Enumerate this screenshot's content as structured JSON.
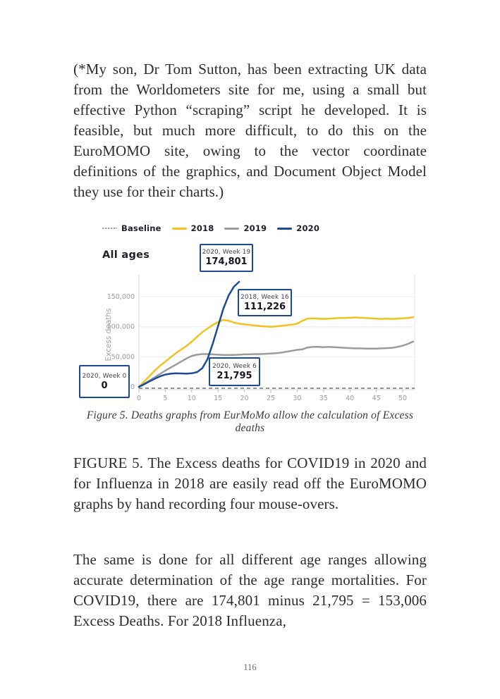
{
  "page": {
    "paragraph1": "(*My son, Dr Tom Sutton, has been extracting UK data from the Worldometers site for me, using a small but effective Python “scraping” script he developed. It is feasible, but much more difficult, to do this on the EuroMOMO site, owing to the vector coordinate definitions of the graphics, and Document Object Model they use for their charts.)",
    "caption": "Figure 5. Deaths graphs from EurMoMo allow the calculation of Excess deaths",
    "paragraph2": "FIGURE 5. The Excess deaths for COVID19 in 2020 and for Influenza in 2018 are easily read off the EuroMOMO graphs by hand recording four mouse-overs.",
    "paragraph3": "The same is done for all different age ranges allowing accurate determination of the age range mortalities. For COVID19, there are 174,801 minus 21,795 = 153,006 Excess Deaths. For 2018 Influenza,",
    "page_number": "116"
  },
  "chart_data": {
    "type": "line",
    "title": "All ages",
    "ylabel": "Excess deaths",
    "xlabel": "",
    "x_unit": "week",
    "xlim": [
      0,
      52
    ],
    "ylim": [
      0,
      180000
    ],
    "grid": "horizontal",
    "legend_position": "top",
    "x_ticks": [
      0,
      5,
      10,
      15,
      20,
      25,
      30,
      35,
      40,
      45,
      50
    ],
    "y_ticks": [
      {
        "value": 0,
        "label": "0"
      },
      {
        "value": 50000,
        "label": "50,000"
      },
      {
        "value": 100000,
        "label": "100,000"
      },
      {
        "value": 150000,
        "label": "150,000"
      }
    ],
    "legend": [
      {
        "label": "Baseline",
        "color": "#9a9a9a",
        "style": "dotted"
      },
      {
        "label": "2018",
        "color": "#f2c21f",
        "style": "solid"
      },
      {
        "label": "2019",
        "color": "#9b9b9b",
        "style": "solid"
      },
      {
        "label": "2020",
        "color": "#1b4a9b",
        "style": "solid"
      }
    ],
    "baseline": {
      "label": "Baseline",
      "value": 0,
      "style": "dashed",
      "color": "#6f6f6f"
    },
    "series": [
      {
        "name": "2018",
        "color": "#f2c21f",
        "x": [
          0,
          1,
          2,
          3,
          4,
          5,
          6,
          7,
          8,
          9,
          10,
          11,
          12,
          13,
          14,
          15,
          16,
          17,
          18,
          19,
          20,
          21,
          22,
          23,
          24,
          25,
          26,
          27,
          28,
          29,
          30,
          31,
          32,
          33,
          34,
          35,
          36,
          37,
          38,
          39,
          40,
          41,
          42,
          43,
          44,
          45,
          46,
          47,
          48,
          49,
          50,
          51,
          52
        ],
        "values": [
          0,
          9000,
          18000,
          27000,
          35000,
          42000,
          49000,
          56000,
          62000,
          68000,
          75000,
          83000,
          91000,
          97000,
          103000,
          108000,
          111226,
          110000,
          107000,
          105000,
          104000,
          103000,
          102000,
          101000,
          100500,
          100000,
          100500,
          101500,
          102500,
          103500,
          105000,
          110000,
          113500,
          114000,
          113500,
          113000,
          113500,
          114000,
          114500,
          114500,
          115000,
          115500,
          115000,
          114500,
          114000,
          113500,
          113000,
          113500,
          113000,
          113500,
          114000,
          114500,
          116000
        ]
      },
      {
        "name": "2019",
        "color": "#9b9b9b",
        "x": [
          0,
          1,
          2,
          3,
          4,
          5,
          6,
          7,
          8,
          9,
          10,
          11,
          12,
          13,
          14,
          15,
          16,
          17,
          18,
          19,
          20,
          21,
          22,
          23,
          24,
          25,
          26,
          27,
          28,
          29,
          30,
          31,
          32,
          33,
          34,
          35,
          36,
          37,
          38,
          39,
          40,
          41,
          42,
          43,
          44,
          45,
          46,
          47,
          48,
          49,
          50,
          51,
          52
        ],
        "values": [
          0,
          5000,
          10500,
          16000,
          21500,
          27000,
          32000,
          37000,
          42000,
          47000,
          51500,
          53500,
          54500,
          54500,
          54000,
          53500,
          53000,
          53000,
          53000,
          53500,
          54000,
          54000,
          54500,
          54500,
          55000,
          55500,
          56000,
          57000,
          58500,
          60000,
          61500,
          62500,
          65500,
          66500,
          66500,
          66000,
          66500,
          66000,
          65500,
          65000,
          64500,
          64000,
          64000,
          63500,
          63500,
          63500,
          64000,
          64500,
          65000,
          66500,
          68500,
          71500,
          75500
        ]
      },
      {
        "name": "2020",
        "color": "#1b4a9b",
        "x": [
          0,
          1,
          2,
          3,
          4,
          5,
          6,
          7,
          8,
          9,
          10,
          11,
          12,
          13,
          14,
          15,
          16,
          17,
          18,
          19
        ],
        "values": [
          0,
          4500,
          9000,
          13500,
          17500,
          20500,
          21795,
          22500,
          22300,
          22000,
          22500,
          24500,
          31000,
          46000,
          72000,
          101000,
          130000,
          152000,
          166500,
          174801
        ]
      }
    ],
    "tooltips": [
      {
        "series": "2020",
        "week": 0,
        "label": "2020, Week 0",
        "value": "0"
      },
      {
        "series": "2020",
        "week": 6,
        "label": "2020, Week 6",
        "value": "21,795"
      },
      {
        "series": "2018",
        "week": 16,
        "label": "2018, Week 16",
        "value": "111,226"
      },
      {
        "series": "2020",
        "week": 19,
        "label": "2020, Week 19",
        "value": "174,801"
      }
    ]
  }
}
